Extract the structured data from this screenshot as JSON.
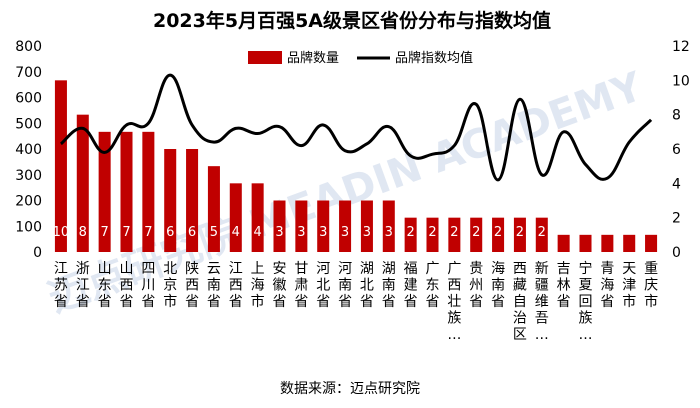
{
  "chart_data": {
    "type": "bar",
    "title": "2023年5月百强5A级景区省份分布与指数均值",
    "source": "数据来源：迈点研究院",
    "watermark": "迈点研究院 MEADIN ACADEMY",
    "categories": [
      "江苏省",
      "浙江省",
      "山东省",
      "山西省",
      "四川省",
      "北京市",
      "陕西省",
      "云南省",
      "江西省",
      "上海市",
      "安徽省",
      "甘肃省",
      "河北省",
      "河南省",
      "湖北省",
      "湖南省",
      "福建省",
      "广东省",
      "广西壮族…",
      "贵州省",
      "海南省",
      "西藏自治区",
      "新疆维吾…",
      "吉林省",
      "宁夏回族…",
      "青海省",
      "天津市",
      "重庆市"
    ],
    "series": [
      {
        "name": "品牌数量",
        "axis": "right",
        "color": "#c00000",
        "values": [
          10,
          8,
          7,
          7,
          7,
          6,
          6,
          5,
          4,
          4,
          3,
          3,
          3,
          3,
          3,
          3,
          2,
          2,
          2,
          2,
          2,
          2,
          2,
          1,
          1,
          1,
          1,
          1
        ],
        "labels": [
          "10",
          "8",
          "7",
          "7",
          "7",
          "6",
          "6",
          "5",
          "4",
          "4",
          "3",
          "3",
          "3",
          "3",
          "3",
          "3",
          "2",
          "2",
          "2",
          "2",
          "2",
          "2",
          "2",
          "",
          "",
          "",
          "",
          ""
        ]
      },
      {
        "name": "品牌指数均值",
        "axis": "right",
        "type": "line",
        "color": "#000000",
        "values": [
          6.3,
          7.2,
          5.8,
          7.4,
          7.5,
          10.3,
          7.4,
          6.4,
          7.2,
          6.9,
          7.3,
          6.2,
          7.4,
          5.9,
          6.3,
          7.3,
          5.6,
          5.7,
          6.2,
          8.6,
          4.2,
          8.9,
          4.5,
          7.0,
          5.1,
          4.3,
          6.4,
          7.7
        ]
      }
    ],
    "y_left": {
      "min": 0,
      "max": 800,
      "ticks": [
        "0",
        "100",
        "200",
        "300",
        "400",
        "500",
        "600",
        "700",
        "800"
      ]
    },
    "y_right": {
      "min": 0,
      "max": 12,
      "ticks": [
        "0",
        "2",
        "4",
        "6",
        "8",
        "10",
        "12"
      ]
    },
    "legend": [
      "品牌数量",
      "品牌指数均值"
    ],
    "legend_position": "top-right"
  }
}
